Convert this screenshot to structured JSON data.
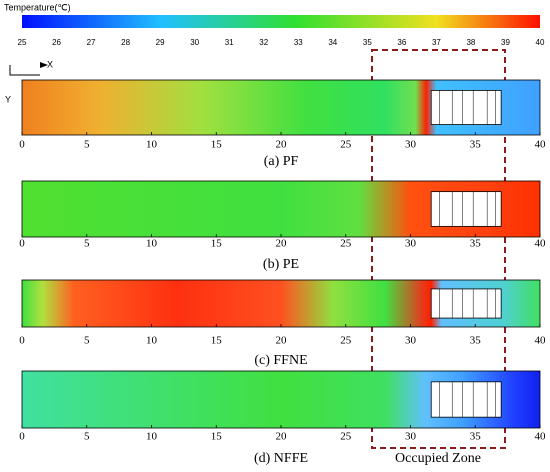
{
  "colorbar": {
    "title": "Temperature(℃)",
    "range": [
      25,
      40
    ],
    "ticks": [
      25,
      26,
      27,
      28,
      29,
      30,
      31,
      32,
      33,
      34,
      35,
      36,
      37,
      38,
      39,
      40
    ]
  },
  "axes": {
    "x_label": "X",
    "y_label": "Y"
  },
  "panels": [
    {
      "caption": "(a) PF",
      "xlim": [
        0,
        40
      ],
      "xticks": [
        0,
        5,
        10,
        15,
        20,
        25,
        30,
        35,
        40
      ]
    },
    {
      "caption": "(b) PE",
      "xlim": [
        0,
        40
      ],
      "xticks": [
        0,
        5,
        10,
        15,
        20,
        25,
        30,
        35,
        40
      ]
    },
    {
      "caption": "(c) FFNE",
      "xlim": [
        0,
        40
      ],
      "xticks": [
        0,
        5,
        10,
        15,
        20,
        25,
        30,
        35,
        40
      ]
    },
    {
      "caption": "(d) NFFE",
      "xlim": [
        0,
        40
      ],
      "xticks": [
        0,
        5,
        10,
        15,
        20,
        25,
        30,
        35,
        40
      ]
    }
  ],
  "annotation": "Occupied Zone"
}
